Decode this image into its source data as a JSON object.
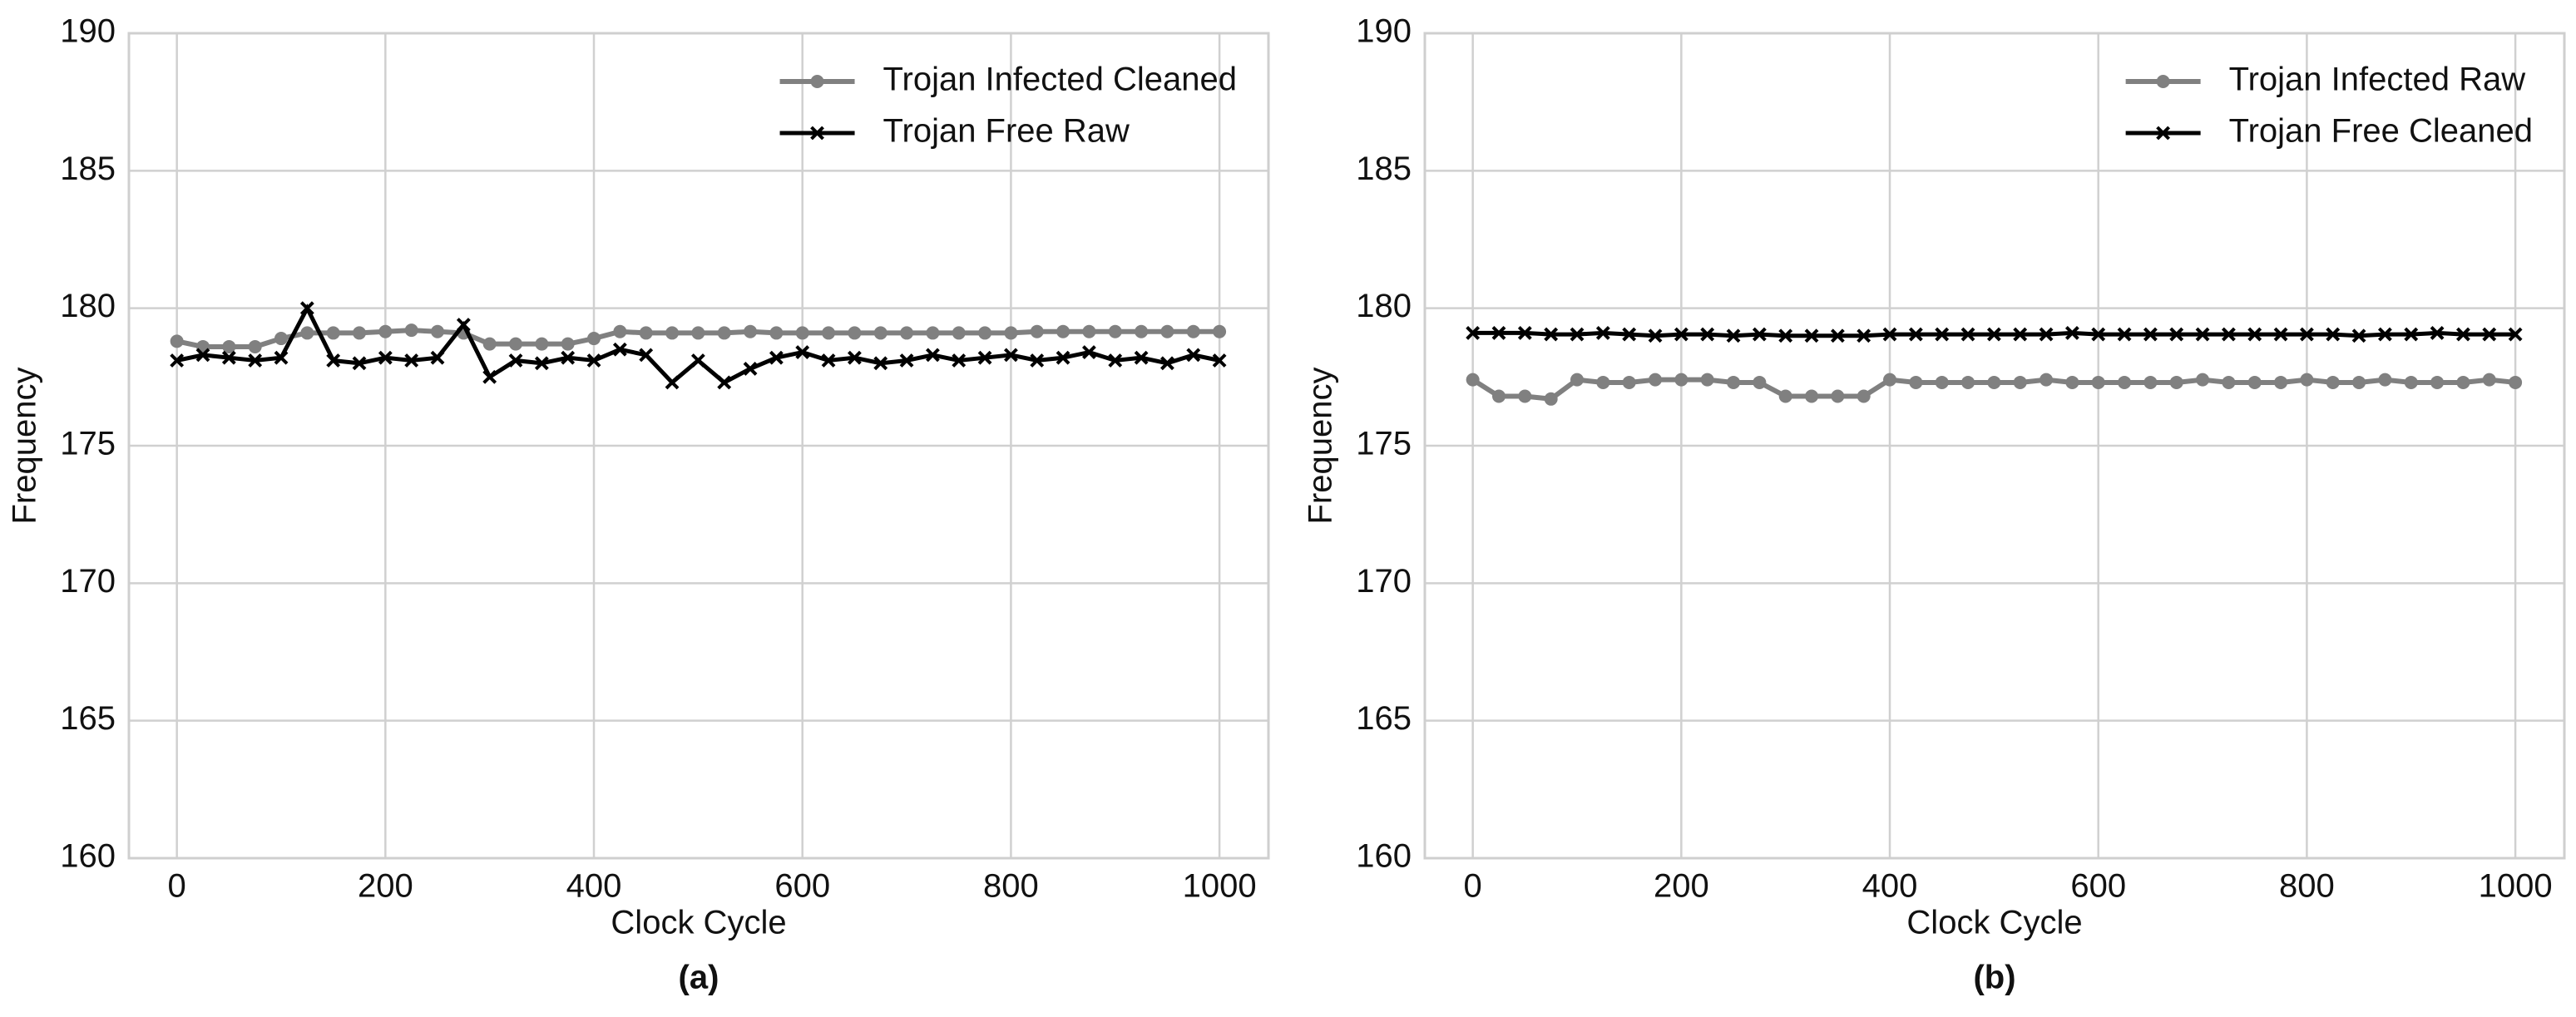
{
  "chart_data": [
    {
      "type": "line",
      "caption": "(a)",
      "xlabel": "Clock Cycle",
      "ylabel": "Frequency",
      "x": [
        0,
        25,
        50,
        75,
        100,
        125,
        150,
        175,
        200,
        225,
        250,
        275,
        300,
        325,
        350,
        375,
        400,
        425,
        450,
        475,
        500,
        525,
        550,
        575,
        600,
        625,
        650,
        675,
        700,
        725,
        750,
        775,
        800,
        825,
        850,
        875,
        900,
        925,
        950,
        975,
        1000
      ],
      "series": [
        {
          "name": "Trojan Infected Cleaned",
          "color": "#808080",
          "marker": "o",
          "values": [
            178.8,
            178.6,
            178.6,
            178.6,
            178.9,
            179.1,
            179.1,
            179.1,
            179.15,
            179.2,
            179.15,
            179.1,
            178.7,
            178.7,
            178.7,
            178.7,
            178.9,
            179.15,
            179.1,
            179.1,
            179.1,
            179.1,
            179.15,
            179.1,
            179.1,
            179.1,
            179.1,
            179.1,
            179.1,
            179.1,
            179.1,
            179.1,
            179.1,
            179.15,
            179.15,
            179.15,
            179.15,
            179.15,
            179.15,
            179.15,
            179.15
          ]
        },
        {
          "name": "Trojan Free Raw",
          "color": "#000000",
          "marker": "x",
          "values": [
            178.1,
            178.3,
            178.2,
            178.1,
            178.2,
            180.0,
            178.1,
            178.0,
            178.2,
            178.1,
            178.2,
            179.4,
            177.5,
            178.1,
            178.0,
            178.2,
            178.1,
            178.5,
            178.3,
            177.3,
            178.1,
            177.3,
            177.8,
            178.2,
            178.4,
            178.1,
            178.2,
            178.0,
            178.1,
            178.3,
            178.1,
            178.2,
            178.3,
            178.1,
            178.2,
            178.4,
            178.1,
            178.2,
            178.0,
            178.3,
            178.1
          ]
        }
      ],
      "xlim": [
        -46,
        1047
      ],
      "ylim": [
        160,
        190
      ],
      "xticks": [
        0,
        200,
        400,
        600,
        800,
        1000
      ],
      "yticks": [
        160,
        165,
        170,
        175,
        180,
        185,
        190
      ],
      "grid": true,
      "legend": "upper right"
    },
    {
      "type": "line",
      "caption": "(b)",
      "xlabel": "Clock Cycle",
      "ylabel": "Frequency",
      "x": [
        0,
        25,
        50,
        75,
        100,
        125,
        150,
        175,
        200,
        225,
        250,
        275,
        300,
        325,
        350,
        375,
        400,
        425,
        450,
        475,
        500,
        525,
        550,
        575,
        600,
        625,
        650,
        675,
        700,
        725,
        750,
        775,
        800,
        825,
        850,
        875,
        900,
        925,
        950,
        975,
        1000
      ],
      "series": [
        {
          "name": "Trojan Infected Raw",
          "color": "#808080",
          "marker": "o",
          "values": [
            177.4,
            176.8,
            176.8,
            176.7,
            177.4,
            177.3,
            177.3,
            177.4,
            177.4,
            177.4,
            177.3,
            177.3,
            176.8,
            176.8,
            176.8,
            176.8,
            177.4,
            177.3,
            177.3,
            177.3,
            177.3,
            177.3,
            177.4,
            177.3,
            177.3,
            177.3,
            177.3,
            177.3,
            177.4,
            177.3,
            177.3,
            177.3,
            177.4,
            177.3,
            177.3,
            177.4,
            177.3,
            177.3,
            177.3,
            177.4,
            177.3
          ]
        },
        {
          "name": "Trojan Free Cleaned",
          "color": "#000000",
          "marker": "x",
          "values": [
            179.1,
            179.1,
            179.1,
            179.05,
            179.05,
            179.1,
            179.05,
            179.0,
            179.05,
            179.05,
            179.0,
            179.05,
            179.0,
            179.0,
            179.0,
            179.0,
            179.05,
            179.05,
            179.05,
            179.05,
            179.05,
            179.05,
            179.05,
            179.1,
            179.05,
            179.05,
            179.05,
            179.05,
            179.05,
            179.05,
            179.05,
            179.05,
            179.05,
            179.05,
            179.0,
            179.05,
            179.05,
            179.1,
            179.05,
            179.05,
            179.05
          ]
        }
      ],
      "xlim": [
        -46,
        1047
      ],
      "ylim": [
        160,
        190
      ],
      "xticks": [
        0,
        200,
        400,
        600,
        800,
        1000
      ],
      "yticks": [
        160,
        165,
        170,
        175,
        180,
        185,
        190
      ],
      "grid": true,
      "legend": "upper right"
    }
  ]
}
